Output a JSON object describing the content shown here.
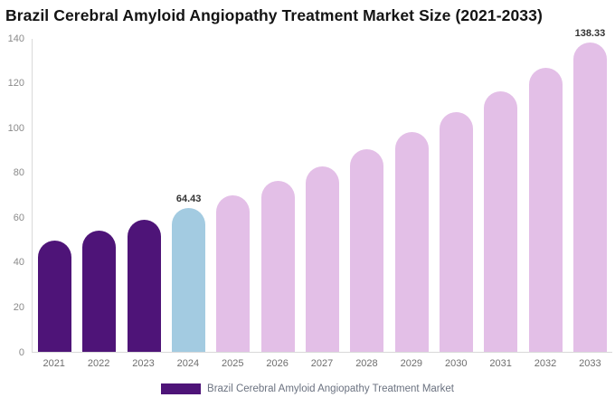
{
  "page": {
    "background": "#ffffff"
  },
  "header": {
    "title": "Brazil Cerebral Amyloid Angiopathy Treatment Market Size (2021-2033)"
  },
  "legend": {
    "label": "Brazil Cerebral Amyloid Angiopathy Treatment Market",
    "swatch_color": "#4E1478",
    "position": "bottom-center"
  },
  "colors": {
    "historical_bar": "#4E1478",
    "base_year_bar": "#A3CBE1",
    "forecast_bar": "#E3BFE7",
    "axis_line": "#d9d9d9",
    "tick_text": "#8a8a8a",
    "value_label_text": "#333333"
  },
  "chart_data": {
    "type": "bar",
    "title": "Brazil Cerebral Amyloid Angiopathy Treatment Market Size (2021-2033)",
    "xlabel": "",
    "ylabel": "",
    "categories": [
      "2021",
      "2022",
      "2023",
      "2024",
      "2025",
      "2026",
      "2027",
      "2028",
      "2029",
      "2030",
      "2031",
      "2032",
      "2033"
    ],
    "values": [
      49.94,
      54.37,
      59.19,
      64.43,
      70.14,
      76.36,
      83.12,
      90.49,
      98.51,
      107.24,
      116.74,
      127.09,
      138.33
    ],
    "visible_value_labels": [
      "",
      "",
      "",
      "64.43",
      "",
      "",
      "",
      "",
      "",
      "",
      "",
      "",
      "138.33"
    ],
    "bar_colors": [
      "#4E1478",
      "#4E1478",
      "#4E1478",
      "#A3CBE1",
      "#E3BFE7",
      "#E3BFE7",
      "#E3BFE7",
      "#E3BFE7",
      "#E3BFE7",
      "#E3BFE7",
      "#E3BFE7",
      "#E3BFE7",
      "#E3BFE7"
    ],
    "yticks": [
      0,
      20,
      40,
      60,
      80,
      100,
      120,
      140
    ],
    "ylim": [
      0,
      140
    ],
    "grid": false,
    "legend_position": "bottom"
  }
}
